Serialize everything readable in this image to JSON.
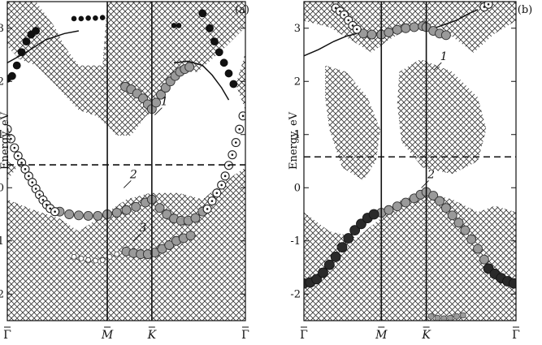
{
  "chart_data": [
    {
      "type": "line",
      "panel_label": "(a)",
      "ylabel": "Energy, eV",
      "ylim": [
        -2.5,
        3.5
      ],
      "yticks": [
        -2,
        -1,
        0,
        1,
        2,
        3
      ],
      "xlim": [
        0,
        1
      ],
      "kpoints": [
        {
          "label": "Γ",
          "x": 0.0
        },
        {
          "label": "M",
          "x": 0.42
        },
        {
          "label": "K",
          "x": 0.607
        },
        {
          "label": "Γ",
          "x": 1.0
        }
      ],
      "fermi_level": 0.43,
      "band_labels": [
        {
          "text": "1",
          "x": 0.66,
          "y": 1.55
        },
        {
          "text": "2",
          "x": 0.53,
          "y": 0.18
        },
        {
          "text": "3",
          "x": 0.57,
          "y": -0.82
        }
      ],
      "series": [
        {
          "id": "band1",
          "style": "grey",
          "points": [
            [
              0.495,
              1.9
            ],
            [
              0.52,
              1.85
            ],
            [
              0.545,
              1.77
            ],
            [
              0.57,
              1.68
            ],
            [
              0.59,
              1.57
            ],
            [
              0.607,
              1.48
            ],
            [
              0.625,
              1.6
            ],
            [
              0.645,
              1.75
            ],
            [
              0.665,
              1.88
            ],
            [
              0.685,
              2.0
            ],
            [
              0.705,
              2.1
            ],
            [
              0.725,
              2.18
            ],
            [
              0.745,
              2.23
            ],
            [
              0.765,
              2.27
            ]
          ]
        },
        {
          "id": "band2",
          "style": "grey",
          "points": [
            [
              0.22,
              -0.45
            ],
            [
              0.26,
              -0.5
            ],
            [
              0.3,
              -0.52
            ],
            [
              0.34,
              -0.53
            ],
            [
              0.38,
              -0.53
            ],
            [
              0.42,
              -0.5
            ],
            [
              0.46,
              -0.47
            ],
            [
              0.5,
              -0.42
            ],
            [
              0.54,
              -0.36
            ],
            [
              0.58,
              -0.28
            ],
            [
              0.607,
              -0.22
            ],
            [
              0.64,
              -0.38
            ],
            [
              0.67,
              -0.5
            ],
            [
              0.7,
              -0.58
            ],
            [
              0.73,
              -0.62
            ],
            [
              0.76,
              -0.62
            ],
            [
              0.79,
              -0.57
            ],
            [
              0.82,
              -0.45
            ]
          ]
        },
        {
          "id": "band3",
          "style": "grey",
          "points": [
            [
              0.5,
              -1.2
            ],
            [
              0.53,
              -1.23
            ],
            [
              0.56,
              -1.25
            ],
            [
              0.59,
              -1.25
            ],
            [
              0.62,
              -1.22
            ],
            [
              0.65,
              -1.15
            ],
            [
              0.68,
              -1.08
            ],
            [
              0.71,
              -1.0
            ],
            [
              0.74,
              -0.95
            ],
            [
              0.77,
              -0.9
            ]
          ]
        },
        {
          "id": "surface-left",
          "style": "ring",
          "points": [
            [
              0.0,
              1.1
            ],
            [
              0.015,
              0.92
            ],
            [
              0.03,
              0.75
            ],
            [
              0.045,
              0.6
            ],
            [
              0.06,
              0.47
            ],
            [
              0.075,
              0.35
            ],
            [
              0.09,
              0.22
            ],
            [
              0.105,
              0.1
            ],
            [
              0.12,
              -0.02
            ],
            [
              0.135,
              -0.13
            ],
            [
              0.15,
              -0.23
            ],
            [
              0.165,
              -0.32
            ],
            [
              0.18,
              -0.39
            ],
            [
              0.2,
              -0.45
            ]
          ]
        },
        {
          "id": "surface-right",
          "style": "ring",
          "points": [
            [
              0.84,
              -0.4
            ],
            [
              0.86,
              -0.25
            ],
            [
              0.88,
              -0.1
            ],
            [
              0.9,
              0.05
            ],
            [
              0.915,
              0.22
            ],
            [
              0.93,
              0.42
            ],
            [
              0.945,
              0.62
            ],
            [
              0.96,
              0.85
            ],
            [
              0.975,
              1.1
            ],
            [
              0.99,
              1.35
            ]
          ]
        },
        {
          "id": "band3-dots",
          "style": "open-small",
          "points": [
            [
              0.28,
              -1.3
            ],
            [
              0.31,
              -1.33
            ],
            [
              0.34,
              -1.36
            ],
            [
              0.37,
              -1.37
            ],
            [
              0.4,
              -1.36
            ],
            [
              0.43,
              -1.3
            ],
            [
              0.46,
              -1.25
            ]
          ]
        },
        {
          "id": "top-left",
          "style": "black",
          "points": [
            [
              0.0,
              2.05
            ],
            [
              0.02,
              2.1
            ],
            [
              0.04,
              2.3
            ],
            [
              0.06,
              2.55
            ],
            [
              0.08,
              2.75
            ],
            [
              0.1,
              2.88
            ],
            [
              0.12,
              2.95
            ]
          ]
        },
        {
          "id": "top-right",
          "style": "black",
          "points": [
            [
              0.82,
              3.28
            ],
            [
              0.85,
              3.0
            ],
            [
              0.87,
              2.75
            ],
            [
              0.89,
              2.55
            ],
            [
              0.91,
              2.35
            ],
            [
              0.93,
              2.15
            ],
            [
              0.95,
              1.95
            ]
          ]
        },
        {
          "id": "top-mid",
          "style": "black-small",
          "points": [
            [
              0.28,
              3.18
            ],
            [
              0.31,
              3.18
            ],
            [
              0.34,
              3.19
            ],
            [
              0.37,
              3.19
            ],
            [
              0.4,
              3.2
            ],
            [
              0.7,
              3.05
            ],
            [
              0.72,
              3.05
            ]
          ]
        }
      ],
      "curves": [
        {
          "id": "a-curve1",
          "points": [
            [
              0.0,
              2.35
            ],
            [
              0.08,
              2.55
            ],
            [
              0.16,
              2.78
            ],
            [
              0.24,
              2.9
            ],
            [
              0.3,
              2.95
            ]
          ]
        },
        {
          "id": "a-curve2",
          "points": [
            [
              0.7,
              2.35
            ],
            [
              0.76,
              2.38
            ],
            [
              0.82,
              2.3
            ],
            [
              0.86,
              2.12
            ],
            [
              0.9,
              1.88
            ],
            [
              0.93,
              1.65
            ]
          ]
        }
      ]
    },
    {
      "type": "line",
      "panel_label": "(b)",
      "ylabel": "Energy, eV",
      "ylim": [
        -2.5,
        3.5
      ],
      "yticks": [
        -2,
        -1,
        0,
        1,
        2,
        3
      ],
      "xlim": [
        0,
        1
      ],
      "kpoints": [
        {
          "label": "Γ",
          "x": 0.0
        },
        {
          "label": "M",
          "x": 0.365
        },
        {
          "label": "K",
          "x": 0.577
        },
        {
          "label": "Γ",
          "x": 1.0
        }
      ],
      "fermi_level": 0.58,
      "band_labels": [
        {
          "text": "1",
          "x": 0.66,
          "y": 2.4
        },
        {
          "text": "2",
          "x": 0.6,
          "y": 0.18
        }
      ],
      "series": [
        {
          "id": "band1",
          "style": "grey",
          "points": [
            [
              0.28,
              2.9
            ],
            [
              0.32,
              2.88
            ],
            [
              0.365,
              2.88
            ],
            [
              0.4,
              2.92
            ],
            [
              0.44,
              2.97
            ],
            [
              0.48,
              3.0
            ],
            [
              0.52,
              3.02
            ],
            [
              0.56,
              3.04
            ],
            [
              0.577,
              3.02
            ],
            [
              0.61,
              2.95
            ],
            [
              0.64,
              2.9
            ],
            [
              0.67,
              2.87
            ]
          ]
        },
        {
          "id": "band2",
          "style": "grey",
          "points": [
            [
              0.365,
              -0.47
            ],
            [
              0.4,
              -0.42
            ],
            [
              0.44,
              -0.35
            ],
            [
              0.48,
              -0.28
            ],
            [
              0.52,
              -0.2
            ],
            [
              0.55,
              -0.13
            ],
            [
              0.577,
              -0.08
            ],
            [
              0.61,
              -0.15
            ],
            [
              0.64,
              -0.25
            ],
            [
              0.67,
              -0.38
            ],
            [
              0.7,
              -0.52
            ],
            [
              0.73,
              -0.66
            ],
            [
              0.76,
              -0.8
            ],
            [
              0.79,
              -0.97
            ],
            [
              0.82,
              -1.15
            ],
            [
              0.85,
              -1.35
            ]
          ]
        },
        {
          "id": "band2-left",
          "style": "dark",
          "points": [
            [
              0.0,
              -1.8
            ],
            [
              0.03,
              -1.78
            ],
            [
              0.06,
              -1.72
            ],
            [
              0.09,
              -1.6
            ],
            [
              0.12,
              -1.45
            ],
            [
              0.15,
              -1.3
            ],
            [
              0.18,
              -1.12
            ],
            [
              0.21,
              -0.95
            ],
            [
              0.24,
              -0.8
            ],
            [
              0.27,
              -0.68
            ],
            [
              0.3,
              -0.57
            ],
            [
              0.33,
              -0.5
            ]
          ]
        },
        {
          "id": "band2-right",
          "style": "dark",
          "points": [
            [
              0.87,
              -1.52
            ],
            [
              0.9,
              -1.62
            ],
            [
              0.93,
              -1.7
            ],
            [
              0.96,
              -1.76
            ],
            [
              0.99,
              -1.8
            ]
          ]
        },
        {
          "id": "top-rings",
          "style": "ring",
          "points": [
            [
              0.15,
              3.38
            ],
            [
              0.17,
              3.32
            ],
            [
              0.19,
              3.25
            ],
            [
              0.21,
              3.15
            ],
            [
              0.23,
              3.05
            ],
            [
              0.25,
              2.98
            ],
            [
              0.85,
              3.4
            ],
            [
              0.87,
              3.45
            ]
          ]
        },
        {
          "id": "bottom-grey",
          "style": "grey-small",
          "points": [
            [
              0.6,
              -2.42
            ],
            [
              0.63,
              -2.45
            ],
            [
              0.66,
              -2.46
            ],
            [
              0.69,
              -2.45
            ],
            [
              0.72,
              -2.42
            ],
            [
              0.75,
              -2.4
            ]
          ]
        }
      ],
      "curves": [
        {
          "id": "b-curve1",
          "points": [
            [
              0.0,
              2.48
            ],
            [
              0.07,
              2.6
            ],
            [
              0.14,
              2.75
            ],
            [
              0.2,
              2.85
            ],
            [
              0.25,
              2.9
            ]
          ]
        },
        {
          "id": "b-curve2",
          "points": [
            [
              0.58,
              2.95
            ],
            [
              0.65,
              3.05
            ],
            [
              0.72,
              3.15
            ],
            [
              0.78,
              3.28
            ],
            [
              0.82,
              3.35
            ]
          ]
        }
      ]
    }
  ]
}
